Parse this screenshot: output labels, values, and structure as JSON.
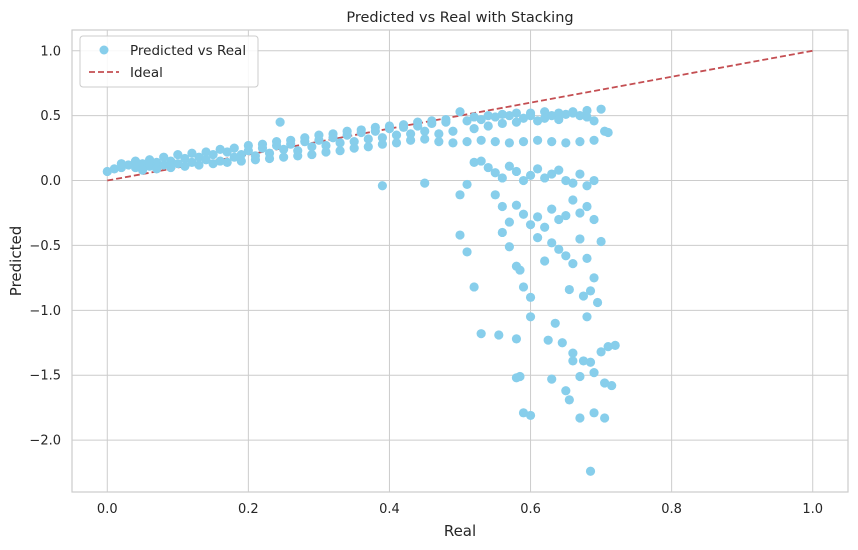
{
  "chart_data": {
    "type": "scatter",
    "title": "Predicted vs Real with Stacking",
    "xlabel": "Real",
    "ylabel": "Predicted",
    "xlim": [
      -0.05,
      1.05
    ],
    "ylim": [
      -2.4,
      1.16
    ],
    "xticks": [
      0.0,
      0.2,
      0.4,
      0.6,
      0.8,
      1.0
    ],
    "xtick_labels": [
      "0.0",
      "0.2",
      "0.4",
      "0.6",
      "0.8",
      "1.0"
    ],
    "yticks": [
      1.0,
      0.5,
      0.0,
      -0.5,
      -1.0,
      -1.5,
      -2.0
    ],
    "ytick_labels": [
      "1.0",
      "0.5",
      "0.0",
      "−0.5",
      "−1.0",
      "−1.5",
      "−2.0"
    ],
    "grid": true,
    "legend": {
      "placement": "top-left",
      "entries": [
        {
          "label": "Predicted vs Real",
          "marker": "circle",
          "color": "#87CEEB"
        },
        {
          "label": "Ideal",
          "marker": "dashed-line",
          "color": "#C44E52"
        }
      ]
    },
    "series": [
      {
        "name": "Predicted vs Real",
        "kind": "scatter",
        "color": "#87CEEB",
        "points": [
          [
            0.0,
            0.07
          ],
          [
            0.01,
            0.09
          ],
          [
            0.02,
            0.1
          ],
          [
            0.03,
            0.12
          ],
          [
            0.04,
            0.1
          ],
          [
            0.05,
            0.13
          ],
          [
            0.06,
            0.11
          ],
          [
            0.07,
            0.14
          ],
          [
            0.08,
            0.12
          ],
          [
            0.09,
            0.15
          ],
          [
            0.1,
            0.13
          ],
          [
            0.11,
            0.17
          ],
          [
            0.12,
            0.14
          ],
          [
            0.13,
            0.18
          ],
          [
            0.14,
            0.16
          ],
          [
            0.15,
            0.2
          ],
          [
            0.16,
            0.15
          ],
          [
            0.17,
            0.22
          ],
          [
            0.18,
            0.18
          ],
          [
            0.19,
            0.2
          ],
          [
            0.2,
            0.23
          ],
          [
            0.21,
            0.19
          ],
          [
            0.22,
            0.25
          ],
          [
            0.23,
            0.21
          ],
          [
            0.24,
            0.27
          ],
          [
            0.245,
            0.45
          ],
          [
            0.25,
            0.24
          ],
          [
            0.26,
            0.28
          ],
          [
            0.27,
            0.23
          ],
          [
            0.28,
            0.3
          ],
          [
            0.29,
            0.26
          ],
          [
            0.3,
            0.31
          ],
          [
            0.31,
            0.27
          ],
          [
            0.32,
            0.33
          ],
          [
            0.33,
            0.29
          ],
          [
            0.34,
            0.35
          ],
          [
            0.35,
            0.3
          ],
          [
            0.36,
            0.37
          ],
          [
            0.37,
            0.32
          ],
          [
            0.38,
            0.38
          ],
          [
            0.39,
            0.33
          ],
          [
            0.4,
            0.4
          ],
          [
            0.41,
            0.35
          ],
          [
            0.42,
            0.41
          ],
          [
            0.43,
            0.36
          ],
          [
            0.44,
            0.42
          ],
          [
            0.45,
            0.38
          ],
          [
            0.46,
            0.44
          ],
          [
            0.47,
            0.36
          ],
          [
            0.48,
            0.45
          ],
          [
            0.49,
            0.38
          ],
          [
            0.5,
            0.53
          ],
          [
            0.51,
            0.46
          ],
          [
            0.52,
            0.4
          ],
          [
            0.53,
            0.47
          ],
          [
            0.54,
            0.42
          ],
          [
            0.55,
            0.49
          ],
          [
            0.56,
            0.44
          ],
          [
            0.57,
            0.5
          ],
          [
            0.58,
            0.45
          ],
          [
            0.59,
            0.48
          ],
          [
            0.6,
            0.5
          ],
          [
            0.61,
            0.46
          ],
          [
            0.62,
            0.48
          ],
          [
            0.63,
            0.5
          ],
          [
            0.64,
            0.47
          ],
          [
            0.65,
            0.51
          ],
          [
            0.66,
            0.52
          ],
          [
            0.67,
            0.5
          ],
          [
            0.68,
            0.49
          ],
          [
            0.69,
            0.46
          ],
          [
            0.7,
            0.55
          ],
          [
            0.705,
            0.38
          ],
          [
            0.71,
            0.37
          ],
          [
            0.05,
            0.08
          ],
          [
            0.07,
            0.09
          ],
          [
            0.09,
            0.1
          ],
          [
            0.11,
            0.11
          ],
          [
            0.13,
            0.12
          ],
          [
            0.15,
            0.13
          ],
          [
            0.17,
            0.14
          ],
          [
            0.19,
            0.15
          ],
          [
            0.21,
            0.16
          ],
          [
            0.23,
            0.17
          ],
          [
            0.25,
            0.18
          ],
          [
            0.27,
            0.19
          ],
          [
            0.29,
            0.2
          ],
          [
            0.31,
            0.22
          ],
          [
            0.33,
            0.23
          ],
          [
            0.35,
            0.25
          ],
          [
            0.37,
            0.26
          ],
          [
            0.39,
            0.28
          ],
          [
            0.41,
            0.29
          ],
          [
            0.43,
            0.31
          ],
          [
            0.45,
            0.32
          ],
          [
            0.47,
            0.3
          ],
          [
            0.49,
            0.29
          ],
          [
            0.51,
            0.3
          ],
          [
            0.53,
            0.31
          ],
          [
            0.55,
            0.3
          ],
          [
            0.57,
            0.29
          ],
          [
            0.59,
            0.3
          ],
          [
            0.61,
            0.31
          ],
          [
            0.63,
            0.3
          ],
          [
            0.65,
            0.29
          ],
          [
            0.67,
            0.3
          ],
          [
            0.69,
            0.31
          ],
          [
            0.02,
            0.13
          ],
          [
            0.04,
            0.15
          ],
          [
            0.06,
            0.16
          ],
          [
            0.08,
            0.18
          ],
          [
            0.1,
            0.2
          ],
          [
            0.12,
            0.21
          ],
          [
            0.14,
            0.22
          ],
          [
            0.16,
            0.24
          ],
          [
            0.18,
            0.25
          ],
          [
            0.2,
            0.27
          ],
          [
            0.22,
            0.28
          ],
          [
            0.24,
            0.3
          ],
          [
            0.26,
            0.31
          ],
          [
            0.28,
            0.33
          ],
          [
            0.3,
            0.35
          ],
          [
            0.32,
            0.36
          ],
          [
            0.34,
            0.38
          ],
          [
            0.36,
            0.39
          ],
          [
            0.38,
            0.41
          ],
          [
            0.4,
            0.42
          ],
          [
            0.42,
            0.43
          ],
          [
            0.44,
            0.45
          ],
          [
            0.46,
            0.46
          ],
          [
            0.48,
            0.47
          ],
          [
            0.52,
            0.49
          ],
          [
            0.54,
            0.5
          ],
          [
            0.56,
            0.51
          ],
          [
            0.58,
            0.52
          ],
          [
            0.6,
            0.52
          ],
          [
            0.62,
            0.53
          ],
          [
            0.64,
            0.52
          ],
          [
            0.66,
            0.53
          ],
          [
            0.68,
            0.54
          ],
          [
            0.39,
            -0.04
          ],
          [
            0.45,
            -0.02
          ],
          [
            0.5,
            -0.11
          ],
          [
            0.51,
            -0.03
          ],
          [
            0.52,
            0.14
          ],
          [
            0.53,
            0.15
          ],
          [
            0.54,
            0.1
          ],
          [
            0.55,
            0.06
          ],
          [
            0.56,
            0.02
          ],
          [
            0.57,
            0.11
          ],
          [
            0.58,
            0.07
          ],
          [
            0.59,
            0.0
          ],
          [
            0.6,
            0.04
          ],
          [
            0.61,
            0.09
          ],
          [
            0.62,
            0.02
          ],
          [
            0.63,
            0.05
          ],
          [
            0.64,
            0.08
          ],
          [
            0.65,
            0.0
          ],
          [
            0.66,
            -0.02
          ],
          [
            0.67,
            0.05
          ],
          [
            0.68,
            -0.04
          ],
          [
            0.69,
            0.0
          ],
          [
            0.55,
            -0.11
          ],
          [
            0.56,
            -0.2
          ],
          [
            0.57,
            -0.32
          ],
          [
            0.58,
            -0.19
          ],
          [
            0.59,
            -0.26
          ],
          [
            0.6,
            -0.34
          ],
          [
            0.61,
            -0.28
          ],
          [
            0.62,
            -0.36
          ],
          [
            0.63,
            -0.22
          ],
          [
            0.64,
            -0.3
          ],
          [
            0.65,
            -0.27
          ],
          [
            0.66,
            -0.15
          ],
          [
            0.67,
            -0.25
          ],
          [
            0.68,
            -0.2
          ],
          [
            0.69,
            -0.3
          ],
          [
            0.5,
            -0.42
          ],
          [
            0.51,
            -0.55
          ],
          [
            0.52,
            -0.82
          ],
          [
            0.56,
            -0.4
          ],
          [
            0.57,
            -0.51
          ],
          [
            0.58,
            -0.66
          ],
          [
            0.585,
            -0.69
          ],
          [
            0.59,
            -0.82
          ],
          [
            0.6,
            -0.9
          ],
          [
            0.61,
            -0.44
          ],
          [
            0.62,
            -0.62
          ],
          [
            0.63,
            -0.48
          ],
          [
            0.64,
            -0.53
          ],
          [
            0.65,
            -0.58
          ],
          [
            0.66,
            -0.64
          ],
          [
            0.67,
            -0.45
          ],
          [
            0.68,
            -0.6
          ],
          [
            0.69,
            -0.75
          ],
          [
            0.7,
            -0.47
          ],
          [
            0.655,
            -0.84
          ],
          [
            0.675,
            -0.89
          ],
          [
            0.685,
            -0.85
          ],
          [
            0.695,
            -0.94
          ],
          [
            0.53,
            -1.18
          ],
          [
            0.555,
            -1.19
          ],
          [
            0.58,
            -1.22
          ],
          [
            0.625,
            -1.23
          ],
          [
            0.645,
            -1.25
          ],
          [
            0.66,
            -1.33
          ],
          [
            0.675,
            -1.39
          ],
          [
            0.685,
            -1.4
          ],
          [
            0.7,
            -1.32
          ],
          [
            0.71,
            -1.28
          ],
          [
            0.72,
            -1.27
          ],
          [
            0.58,
            -1.52
          ],
          [
            0.585,
            -1.51
          ],
          [
            0.63,
            -1.53
          ],
          [
            0.65,
            -1.62
          ],
          [
            0.655,
            -1.69
          ],
          [
            0.67,
            -1.51
          ],
          [
            0.69,
            -1.48
          ],
          [
            0.705,
            -1.56
          ],
          [
            0.715,
            -1.58
          ],
          [
            0.59,
            -1.79
          ],
          [
            0.6,
            -1.81
          ],
          [
            0.67,
            -1.83
          ],
          [
            0.69,
            -1.79
          ],
          [
            0.705,
            -1.83
          ],
          [
            0.685,
            -2.24
          ],
          [
            0.66,
            -1.39
          ],
          [
            0.68,
            -1.05
          ],
          [
            0.6,
            -1.05
          ],
          [
            0.635,
            -1.1
          ]
        ]
      },
      {
        "name": "Ideal",
        "kind": "line",
        "style": "dashed",
        "color": "#C44E52",
        "points": [
          [
            0.0,
            0.0
          ],
          [
            1.0,
            1.0
          ]
        ]
      }
    ]
  }
}
